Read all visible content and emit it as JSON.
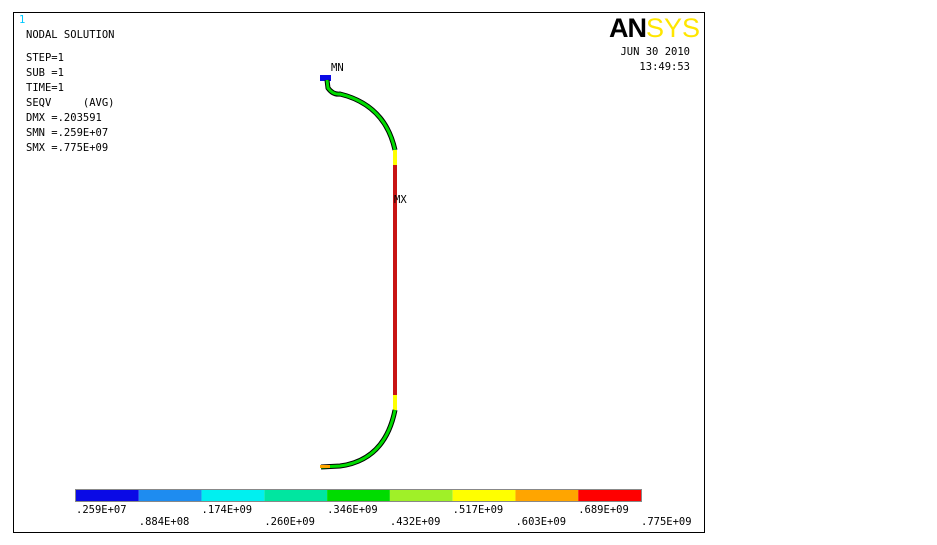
{
  "window_number": "1",
  "info": {
    "title": "NODAL SOLUTION",
    "lines": [
      "STEP=1",
      "SUB =1",
      "TIME=1",
      "SEQV     (AVG)",
      "DMX =.203591",
      "SMN =.259E+07",
      "SMX =.775E+09"
    ]
  },
  "logo": [
    "AN",
    "SYS"
  ],
  "date": "JUN 30 2010",
  "time": "13:49:53",
  "markers": {
    "min": "MN",
    "max": "MX"
  },
  "legend": {
    "colors": [
      "#0a0ae6",
      "#1e8cf0",
      "#00f0f0",
      "#00e6a0",
      "#00dc00",
      "#a0f028",
      "#ffff00",
      "#ffa500",
      "#ff0000"
    ],
    "labels": [
      ".259E+07",
      ".884E+08",
      ".174E+09",
      ".260E+09",
      ".346E+09",
      ".432E+09",
      ".517E+09",
      ".603E+09",
      ".689E+09",
      ".775E+09"
    ]
  }
}
